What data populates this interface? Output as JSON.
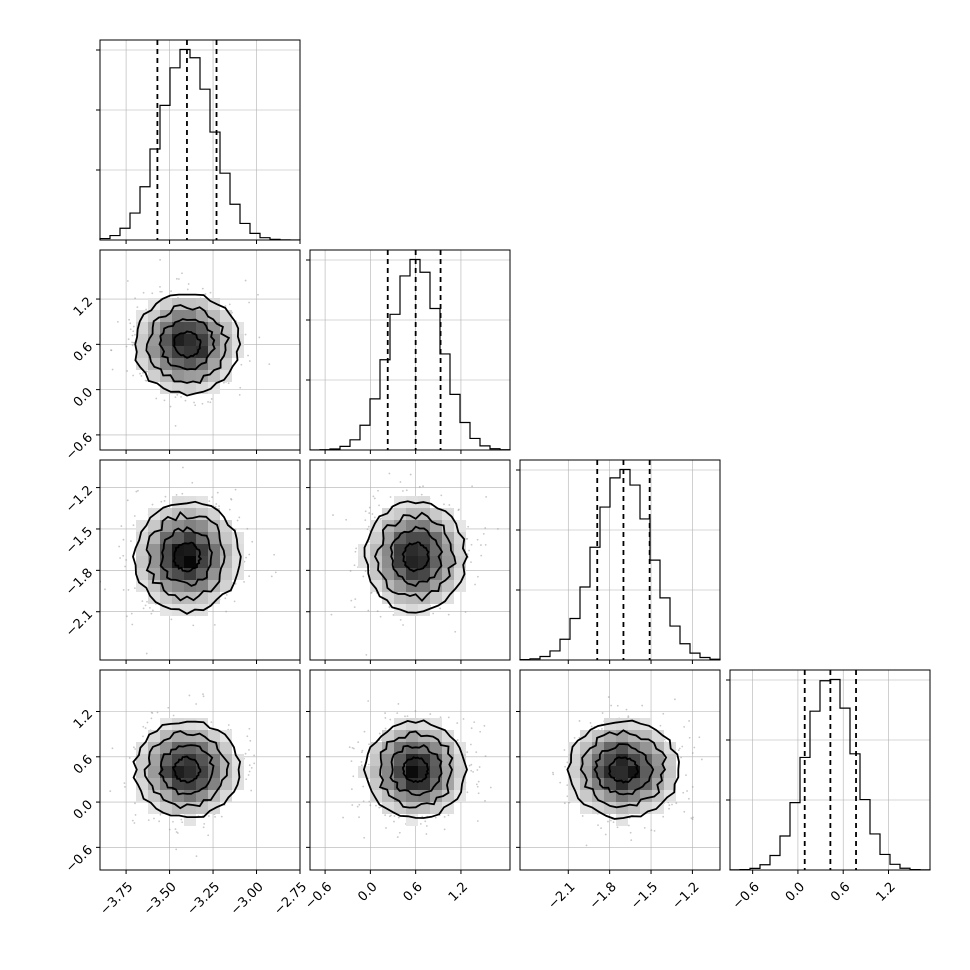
{
  "chart_data": {
    "type": "corner",
    "parameters": [
      {
        "mean": -3.4,
        "sd": 0.15,
        "q16": -3.57,
        "q50": -3.4,
        "q84": -3.23,
        "lim": [
          -3.9,
          -2.75
        ],
        "ticks": [
          "−3.75",
          "−3.50",
          "−3.25",
          "−3.00",
          "−2.75"
        ],
        "tickvals": [
          -3.75,
          -3.5,
          -3.25,
          -3.0,
          -2.75
        ]
      },
      {
        "mean": 0.6,
        "sd": 0.33,
        "q16": 0.23,
        "q50": 0.6,
        "q84": 0.93,
        "lim": [
          -0.8,
          1.85
        ],
        "ticks": [
          "−0.6",
          "0.0",
          "0.6",
          "1.2"
        ],
        "tickvals": [
          -0.6,
          0.0,
          0.6,
          1.2
        ]
      },
      {
        "mean": -1.7,
        "sd": 0.2,
        "q16": -1.89,
        "q50": -1.7,
        "q84": -1.51,
        "lim": [
          -2.45,
          -1.0
        ],
        "ticks": [
          "−2.1",
          "−1.8",
          "−1.5",
          "−1.2"
        ],
        "tickvals": [
          -2.1,
          -1.8,
          -1.5,
          -1.2
        ]
      },
      {
        "mean": 0.43,
        "sd": 0.32,
        "q16": 0.09,
        "q50": 0.43,
        "q84": 0.77,
        "lim": [
          -0.9,
          1.75
        ],
        "ticks": [
          "−0.6",
          "0.0",
          "0.6",
          "1.2"
        ],
        "tickvals": [
          -0.6,
          0.0,
          0.6,
          1.2
        ]
      }
    ],
    "quantiles": [
      0.16,
      0.5,
      0.84
    ],
    "contour_levels": [
      0.5,
      1.0,
      1.5,
      2.0
    ],
    "grid": true
  }
}
